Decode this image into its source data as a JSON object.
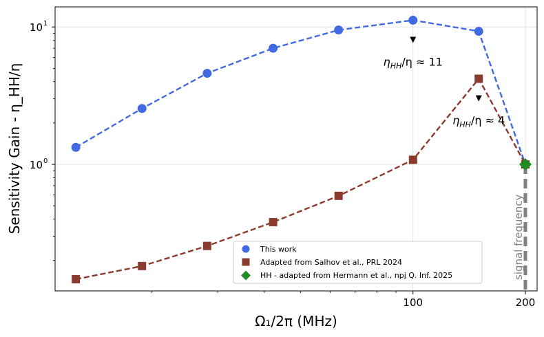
{
  "chart_data": {
    "type": "line",
    "x_scale": "log",
    "y_scale": "log",
    "xlabel": "Ω₁/2π (MHz)",
    "ylabel": "Sensitivity Gain - η_HH/η",
    "xlim": [
      11,
      215
    ],
    "ylim": [
      0.12,
      14
    ],
    "x_ticks": [
      {
        "value": 100,
        "label": "100"
      },
      {
        "value": 200,
        "label": "200"
      }
    ],
    "y_ticks": [
      {
        "value": 1,
        "label": "10",
        "exponent": "0"
      },
      {
        "value": 10,
        "label": "10",
        "exponent": "1"
      }
    ],
    "x_minor_ticks": [
      20,
      30,
      40,
      50,
      60,
      70,
      80,
      90
    ],
    "grid": true,
    "legend_position": "lower-right",
    "series": [
      {
        "name": "This work",
        "color": "#4169e1",
        "marker": "circle",
        "x": [
          12.5,
          18.8,
          28.1,
          42.2,
          63.2,
          100,
          150,
          200
        ],
        "y": [
          1.33,
          2.55,
          4.6,
          7.0,
          9.5,
          11.2,
          9.3,
          1.0
        ]
      },
      {
        "name": "Adapted from Salhov et al., PRL 2024",
        "color": "#8b3a2e",
        "marker": "square",
        "x": [
          12.5,
          18.8,
          28.1,
          42.2,
          63.2,
          100,
          150,
          200
        ],
        "y": [
          0.146,
          0.182,
          0.255,
          0.38,
          0.59,
          1.08,
          4.2,
          1.0
        ]
      },
      {
        "name": "HH - adapted from Hermann et al., npj Q. Inf. 2025",
        "color": "#228b22",
        "marker": "diamond",
        "x": [
          200
        ],
        "y": [
          1.0
        ]
      }
    ],
    "annotations": [
      {
        "text_main": "η",
        "text_sub": "HH",
        "text_rest": "/η ≈ 11",
        "arrow_x": 100,
        "arrow_y": 8.0,
        "text_x": 100,
        "text_y": 5.6
      },
      {
        "text_main": "η",
        "text_sub": "HH",
        "text_rest": "/η ≈ 4",
        "arrow_x": 150,
        "arrow_y": 3.0,
        "text_x": 150,
        "text_y": 2.1
      }
    ],
    "vline": {
      "x": 200,
      "label": "signal frequency",
      "color": "#808080"
    }
  }
}
